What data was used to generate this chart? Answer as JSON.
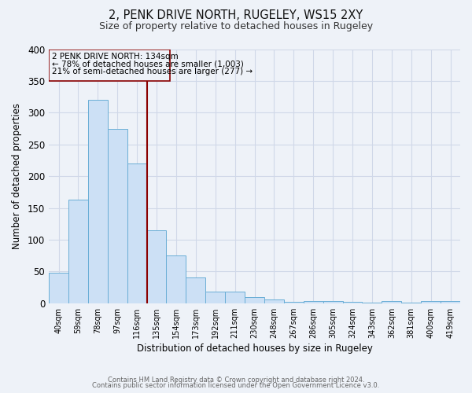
{
  "title": "2, PENK DRIVE NORTH, RUGELEY, WS15 2XY",
  "subtitle": "Size of property relative to detached houses in Rugeley",
  "xlabel": "Distribution of detached houses by size in Rugeley",
  "ylabel": "Number of detached properties",
  "bin_labels": [
    "40sqm",
    "59sqm",
    "78sqm",
    "97sqm",
    "116sqm",
    "135sqm",
    "154sqm",
    "173sqm",
    "192sqm",
    "211sqm",
    "230sqm",
    "248sqm",
    "267sqm",
    "286sqm",
    "305sqm",
    "324sqm",
    "343sqm",
    "362sqm",
    "381sqm",
    "400sqm",
    "419sqm"
  ],
  "bar_values": [
    48,
    163,
    320,
    275,
    220,
    115,
    75,
    40,
    18,
    18,
    10,
    6,
    2,
    4,
    3,
    2,
    1,
    3,
    1,
    3,
    3
  ],
  "bar_color": "#cce0f5",
  "bar_edge_color": "#6aaed6",
  "marker_bin_index": 5,
  "marker_label_line1": "2 PENK DRIVE NORTH: 134sqm",
  "marker_label_line2": "← 78% of detached houses are smaller (1,003)",
  "marker_label_line3": "21% of semi-detached houses are larger (277) →",
  "marker_color": "#8b0000",
  "annotation_box_edge_color": "#8b0000",
  "ylim": [
    0,
    400
  ],
  "yticks": [
    0,
    50,
    100,
    150,
    200,
    250,
    300,
    350,
    400
  ],
  "grid_color": "#d0d8e8",
  "bg_color": "#eef2f8",
  "footer_line1": "Contains HM Land Registry data © Crown copyright and database right 2024.",
  "footer_line2": "Contains public sector information licensed under the Open Government Licence v3.0."
}
